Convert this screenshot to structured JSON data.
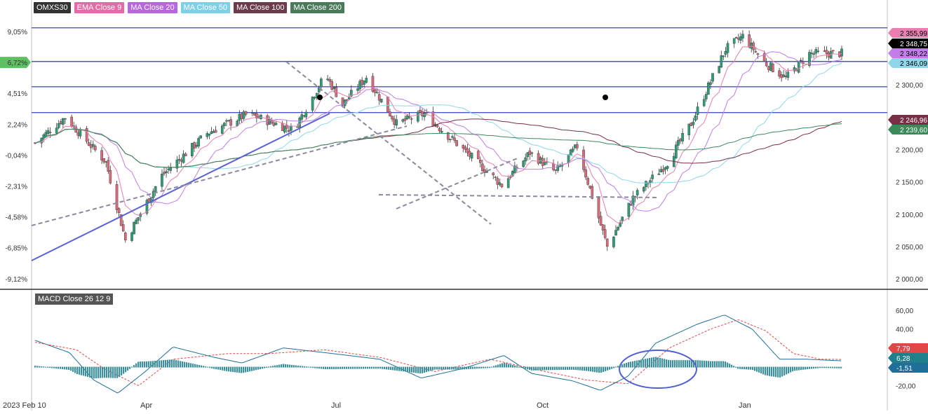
{
  "legend": [
    {
      "label": "OMXS30",
      "color": "#333333"
    },
    {
      "label": "EMA Close 9",
      "color": "#e66aa6"
    },
    {
      "label": "MA Close 20",
      "color": "#b865e0"
    },
    {
      "label": "MA Close 50",
      "color": "#7dd0e6"
    },
    {
      "label": "MA Close 100",
      "color": "#6b3b4b"
    },
    {
      "label": "MA Close 200",
      "color": "#4a7a5a"
    }
  ],
  "macd_label": "MACD Close 26 12 9",
  "colors": {
    "up": "#2e9e78",
    "down": "#d96a7a",
    "ema9": "#e87fb0",
    "ma20": "#c07ee6",
    "ma50": "#8fd6ea",
    "ma100": "#7a2e45",
    "ma200": "#3a8a5a",
    "hline": "#4b55c8",
    "trend": "#5a63d6",
    "dashed": "#8a8aa0",
    "macd": "#1f6f9a",
    "signal": "#e04848",
    "hist": "#3d8f9c"
  },
  "chart_data": {
    "type": "candlestick",
    "title": "OMXS30",
    "x_ticks": [
      "2023 Feb 10",
      "Apr",
      "Jul",
      "Oct",
      "Jan"
    ],
    "y_left_ticks": [
      "9,05%",
      "6,72%",
      "4,51%",
      "2,24%",
      "-0,04%",
      "-2,31%",
      "-4,58%",
      "-6,85%",
      "-9,12%"
    ],
    "y_left_highlight": "6,72%",
    "y_right_ticks": [
      2300,
      2250,
      2200,
      2150,
      2100,
      2050,
      2000
    ],
    "y_right_tick_labels": [
      "2 300,00",
      "2 250,00",
      "2 200,00",
      "2 150,00",
      "2 100,00",
      "2 050,00",
      "2 000,00"
    ],
    "ylim": [
      1985,
      2405
    ],
    "price_tags": [
      {
        "label": "2 355,99",
        "value": 2355.99,
        "bg": "#e87fb0",
        "fg": "#000000"
      },
      {
        "label": "2 348,75",
        "value": 2348.75,
        "bg": "#000000",
        "fg": "#ffffff"
      },
      {
        "label": "2 348,22",
        "value": 2348.22,
        "bg": "#c07ee6",
        "fg": "#000000"
      },
      {
        "label": "2 346,09",
        "value": 2346.09,
        "bg": "#8fd6ea",
        "fg": "#000000"
      },
      {
        "label": "2 246,96",
        "value": 2246.96,
        "bg": "#7a2e45",
        "fg": "#ffffff"
      },
      {
        "label": "2 239,60",
        "value": 2239.6,
        "bg": "#3a8a5a",
        "fg": "#ffffff"
      }
    ],
    "horizontal_levels": [
      2388,
      2336,
      2297,
      2257
    ],
    "key_points": [
      {
        "date": "2023-02-10",
        "value": 2210
      },
      {
        "date": "2023-02-24",
        "value": 2250
      },
      {
        "date": "2023-03-15",
        "value": 2180
      },
      {
        "date": "2023-03-24",
        "value": 2060
      },
      {
        "date": "2023-04-10",
        "value": 2160
      },
      {
        "date": "2023-05-01",
        "value": 2225
      },
      {
        "date": "2023-05-20",
        "value": 2255
      },
      {
        "date": "2023-06-10",
        "value": 2230
      },
      {
        "date": "2023-06-25",
        "value": 2315
      },
      {
        "date": "2023-07-03",
        "value": 2270
      },
      {
        "date": "2023-07-14",
        "value": 2312
      },
      {
        "date": "2023-07-28",
        "value": 2240
      },
      {
        "date": "2023-08-10",
        "value": 2255
      },
      {
        "date": "2023-08-28",
        "value": 2200
      },
      {
        "date": "2023-09-15",
        "value": 2145
      },
      {
        "date": "2023-09-28",
        "value": 2195
      },
      {
        "date": "2023-10-10",
        "value": 2165
      },
      {
        "date": "2023-10-20",
        "value": 2205
      },
      {
        "date": "2023-11-03",
        "value": 2050
      },
      {
        "date": "2023-11-15",
        "value": 2125
      },
      {
        "date": "2023-12-01",
        "value": 2180
      },
      {
        "date": "2023-12-12",
        "value": 2240
      },
      {
        "date": "2023-12-28",
        "value": 2355
      },
      {
        "date": "2024-01-05",
        "value": 2375
      },
      {
        "date": "2024-01-15",
        "value": 2335
      },
      {
        "date": "2024-01-25",
        "value": 2310
      },
      {
        "date": "2024-02-05",
        "value": 2348
      },
      {
        "date": "2024-02-20",
        "value": 2348.75
      }
    ],
    "macd": {
      "y_ticks": [
        60,
        40,
        20,
        -20
      ],
      "y_tick_labels": [
        "60,00",
        "40,00",
        "20,00",
        "-20,00"
      ],
      "ylim": [
        -30,
        68
      ],
      "tags": [
        {
          "label": "7,79",
          "value": 7.79,
          "bg": "#e04848"
        },
        {
          "label": "6,28",
          "value": 6.28,
          "bg": "#1f7f8a"
        },
        {
          "label": "-1,51",
          "value": -1.51,
          "bg": "#1f6f9a"
        }
      ],
      "macd_points": [
        [
          0,
          28
        ],
        [
          0.05,
          15
        ],
        [
          0.085,
          -14
        ],
        [
          0.12,
          -28
        ],
        [
          0.16,
          -5
        ],
        [
          0.2,
          21
        ],
        [
          0.26,
          10
        ],
        [
          0.3,
          4
        ],
        [
          0.36,
          20
        ],
        [
          0.42,
          15
        ],
        [
          0.5,
          8
        ],
        [
          0.56,
          -12
        ],
        [
          0.62,
          -2
        ],
        [
          0.68,
          12
        ],
        [
          0.72,
          -7
        ],
        [
          0.78,
          -15
        ],
        [
          0.82,
          -25
        ],
        [
          0.86,
          -10
        ],
        [
          0.9,
          25
        ],
        [
          0.96,
          45
        ],
        [
          1.0,
          55
        ],
        [
          1.04,
          40
        ],
        [
          1.08,
          8
        ],
        [
          1.12,
          8
        ],
        [
          1.17,
          6.28
        ]
      ],
      "signal_points": [
        [
          0,
          26
        ],
        [
          0.06,
          18
        ],
        [
          0.1,
          -2
        ],
        [
          0.15,
          -20
        ],
        [
          0.2,
          8
        ],
        [
          0.28,
          14
        ],
        [
          0.34,
          14
        ],
        [
          0.42,
          18
        ],
        [
          0.5,
          10
        ],
        [
          0.58,
          -5
        ],
        [
          0.66,
          8
        ],
        [
          0.74,
          -5
        ],
        [
          0.8,
          -14
        ],
        [
          0.86,
          -18
        ],
        [
          0.92,
          20
        ],
        [
          0.98,
          40
        ],
        [
          1.02,
          50
        ],
        [
          1.06,
          38
        ],
        [
          1.1,
          14
        ],
        [
          1.14,
          8
        ],
        [
          1.17,
          7.79
        ]
      ]
    }
  }
}
